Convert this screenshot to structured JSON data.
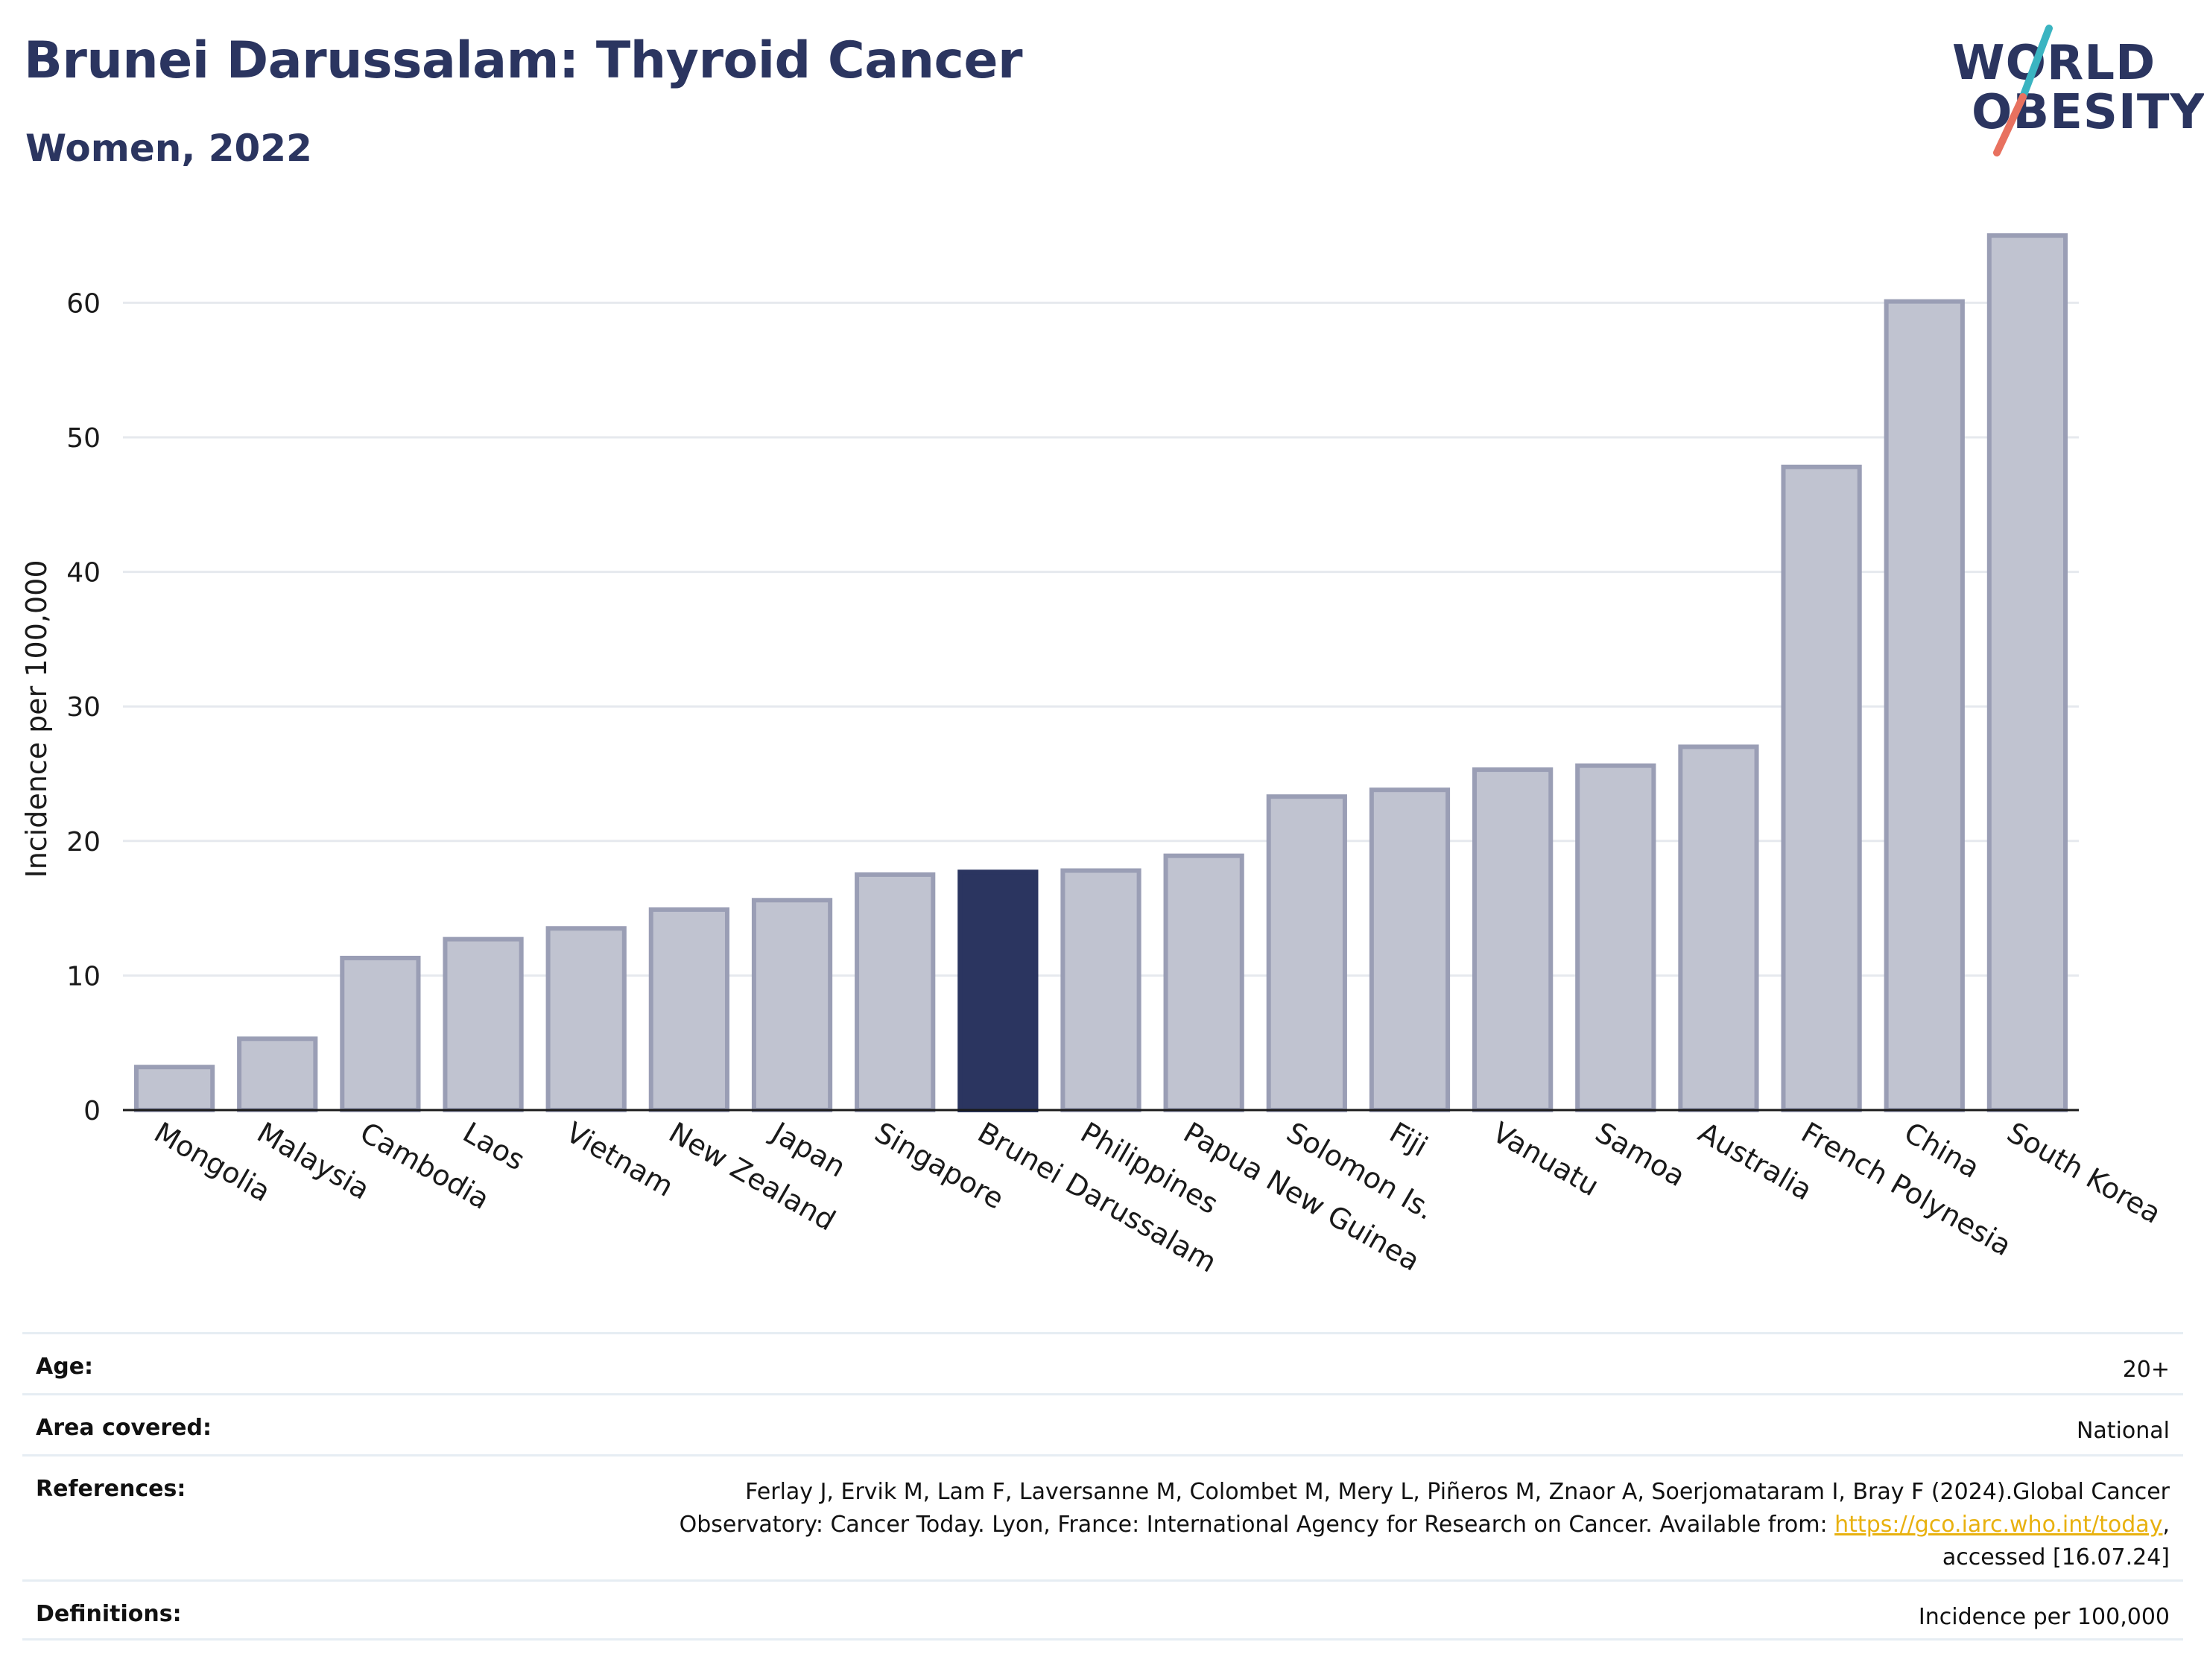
{
  "header": {
    "title": "Brunei Darussalam: Thyroid Cancer",
    "subtitle": "Women, 2022"
  },
  "logo": {
    "line1": "WORLD",
    "line2": "OBESITY",
    "slash_colors": [
      "#3bb4c1",
      "#e8715f"
    ]
  },
  "colors": {
    "title": "#2b3560",
    "bar_default": "#c0c3d0",
    "bar_default_border": "#9a9eb5",
    "bar_highlight": "#2b3560",
    "grid": "#e6e9ee",
    "link": "#e8b10f"
  },
  "chart_data": {
    "type": "bar",
    "title": "Brunei Darussalam: Thyroid Cancer",
    "subtitle": "Women, 2022",
    "xlabel": "",
    "ylabel": "Incidence per 100,000",
    "ylim": [
      0,
      67
    ],
    "yticks": [
      0,
      10,
      20,
      30,
      40,
      50,
      60
    ],
    "grid": true,
    "highlight": "Brunei Darussalam",
    "categories": [
      "Mongolia",
      "Malaysia",
      "Cambodia",
      "Laos",
      "Vietnam",
      "New Zealand",
      "Japan",
      "Singapore",
      "Brunei Darussalam",
      "Philippines",
      "Papua New Guinea",
      "Solomon Is.",
      "Fiji",
      "Vanuatu",
      "Samoa",
      "Australia",
      "French Polynesia",
      "China",
      "South Korea"
    ],
    "values": [
      3.2,
      5.3,
      11.3,
      12.7,
      13.5,
      14.9,
      15.6,
      17.5,
      17.7,
      17.8,
      18.9,
      23.3,
      23.8,
      25.3,
      25.6,
      27.0,
      47.8,
      60.1,
      65.0
    ]
  },
  "meta": {
    "age_label": "Age:",
    "age_value": "20+",
    "area_label": "Area covered:",
    "area_value": "National",
    "references_label": "References:",
    "references_line1": "Ferlay J, Ervik M, Lam F, Laversanne M, Colombet M, Mery L, Piñeros M, Znaor A, Soerjomataram I, Bray F (2024).Global Cancer",
    "references_line2": "Observatory: Cancer Today. Lyon, France: International Agency for Research on Cancer. Available from: ",
    "references_link": "https://gco.iarc.who.int/today",
    "references_line2_end": ",",
    "references_line3": "accessed [16.07.24]",
    "definitions_label": "Definitions:",
    "definitions_value": "Incidence per 100,000"
  }
}
